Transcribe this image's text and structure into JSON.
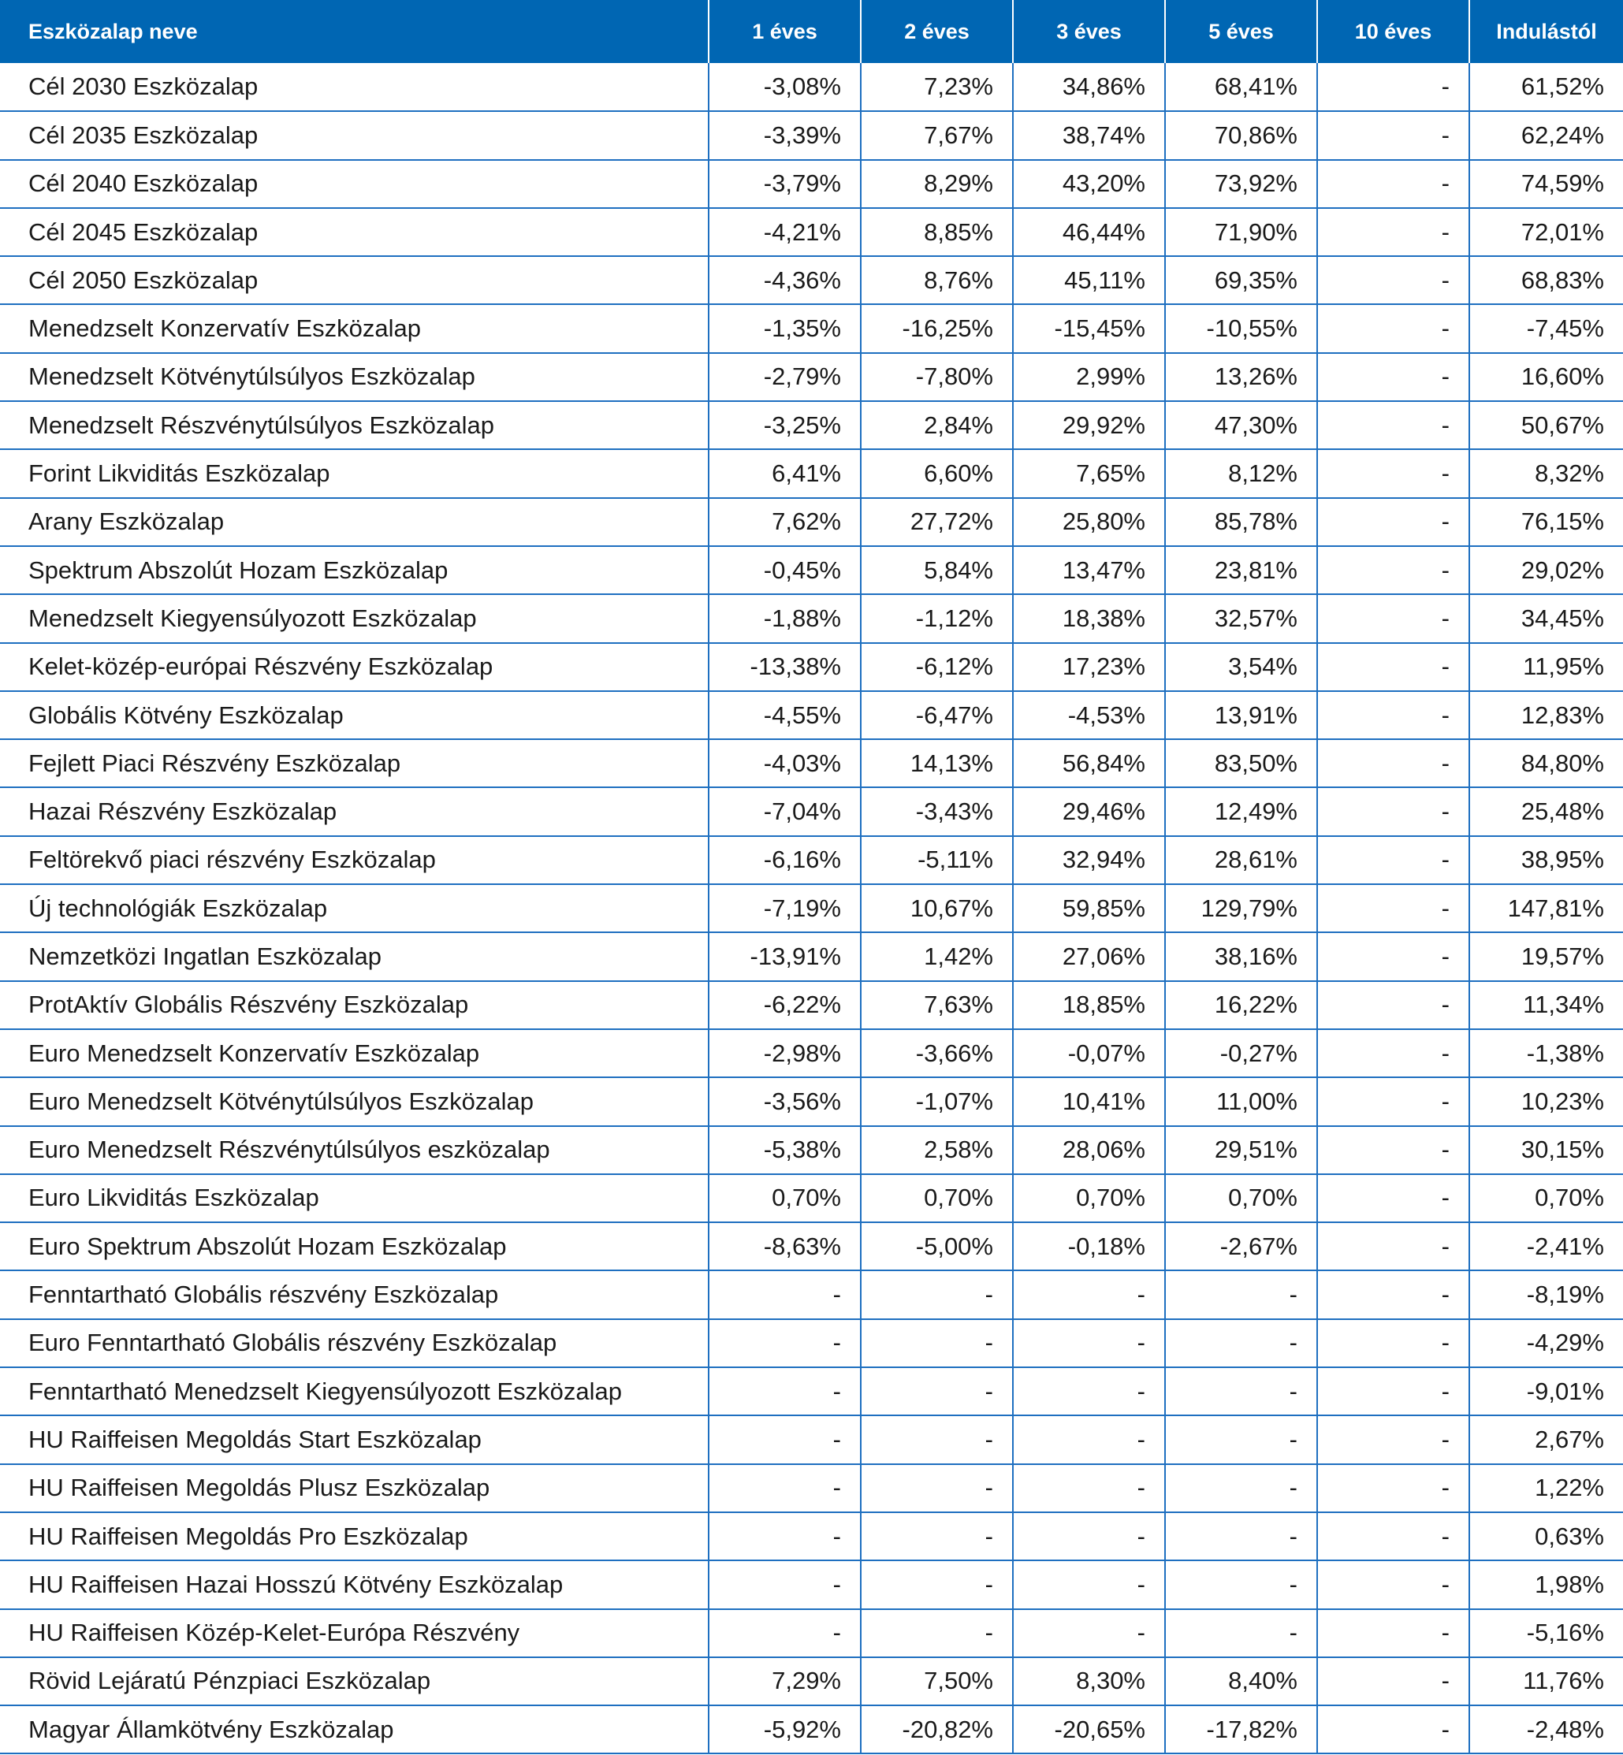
{
  "table": {
    "headers": [
      "Eszközalap neve",
      "1 éves",
      "2 éves",
      "3 éves",
      "5 éves",
      "10 éves",
      "Indulástól"
    ],
    "rows": [
      [
        "Cél 2030 Eszközalap",
        "-3,08%",
        "7,23%",
        "34,86%",
        "68,41%",
        "-",
        "61,52%"
      ],
      [
        "Cél 2035 Eszközalap",
        "-3,39%",
        "7,67%",
        "38,74%",
        "70,86%",
        "-",
        "62,24%"
      ],
      [
        "Cél 2040 Eszközalap",
        "-3,79%",
        "8,29%",
        "43,20%",
        "73,92%",
        "-",
        "74,59%"
      ],
      [
        "Cél 2045 Eszközalap",
        "-4,21%",
        "8,85%",
        "46,44%",
        "71,90%",
        "-",
        "72,01%"
      ],
      [
        "Cél 2050 Eszközalap",
        "-4,36%",
        "8,76%",
        "45,11%",
        "69,35%",
        "-",
        "68,83%"
      ],
      [
        "Menedzselt Konzervatív Eszközalap",
        "-1,35%",
        "-16,25%",
        "-15,45%",
        "-10,55%",
        "-",
        "-7,45%"
      ],
      [
        "Menedzselt Kötvénytúlsúlyos Eszközalap",
        "-2,79%",
        "-7,80%",
        "2,99%",
        "13,26%",
        "-",
        "16,60%"
      ],
      [
        "Menedzselt Részvénytúlsúlyos Eszközalap",
        "-3,25%",
        "2,84%",
        "29,92%",
        "47,30%",
        "-",
        "50,67%"
      ],
      [
        "Forint Likviditás Eszközalap",
        "6,41%",
        "6,60%",
        "7,65%",
        "8,12%",
        "-",
        "8,32%"
      ],
      [
        "Arany Eszközalap",
        "7,62%",
        "27,72%",
        "25,80%",
        "85,78%",
        "-",
        "76,15%"
      ],
      [
        "Spektrum Abszolút Hozam Eszközalap",
        "-0,45%",
        "5,84%",
        "13,47%",
        "23,81%",
        "-",
        "29,02%"
      ],
      [
        "Menedzselt Kiegyensúlyozott Eszközalap",
        "-1,88%",
        "-1,12%",
        "18,38%",
        "32,57%",
        "-",
        "34,45%"
      ],
      [
        "Kelet-közép-európai Részvény Eszközalap",
        "-13,38%",
        "-6,12%",
        "17,23%",
        "3,54%",
        "-",
        "11,95%"
      ],
      [
        "Globális Kötvény Eszközalap",
        "-4,55%",
        "-6,47%",
        "-4,53%",
        "13,91%",
        "-",
        "12,83%"
      ],
      [
        "Fejlett Piaci Részvény Eszközalap",
        "-4,03%",
        "14,13%",
        "56,84%",
        "83,50%",
        "-",
        "84,80%"
      ],
      [
        "Hazai Részvény Eszközalap",
        "-7,04%",
        "-3,43%",
        "29,46%",
        "12,49%",
        "-",
        "25,48%"
      ],
      [
        "Feltörekvő piaci részvény Eszközalap",
        "-6,16%",
        "-5,11%",
        "32,94%",
        "28,61%",
        "-",
        "38,95%"
      ],
      [
        "Új technológiák Eszközalap",
        "-7,19%",
        "10,67%",
        "59,85%",
        "129,79%",
        "-",
        "147,81%"
      ],
      [
        "Nemzetközi Ingatlan Eszközalap",
        "-13,91%",
        "1,42%",
        "27,06%",
        "38,16%",
        "-",
        "19,57%"
      ],
      [
        "ProtAktív Globális Részvény Eszközalap",
        "-6,22%",
        "7,63%",
        "18,85%",
        "16,22%",
        "-",
        "11,34%"
      ],
      [
        "Euro Menedzselt Konzervatív Eszközalap",
        "-2,98%",
        "-3,66%",
        "-0,07%",
        "-0,27%",
        "-",
        "-1,38%"
      ],
      [
        "Euro Menedzselt Kötvénytúlsúlyos Eszközalap",
        "-3,56%",
        "-1,07%",
        "10,41%",
        "11,00%",
        "-",
        "10,23%"
      ],
      [
        "Euro Menedzselt Részvénytúlsúlyos eszközalap",
        "-5,38%",
        "2,58%",
        "28,06%",
        "29,51%",
        "-",
        "30,15%"
      ],
      [
        "Euro Likviditás Eszközalap",
        "0,70%",
        "0,70%",
        "0,70%",
        "0,70%",
        "-",
        "0,70%"
      ],
      [
        "Euro Spektrum Abszolút Hozam Eszközalap",
        "-8,63%",
        "-5,00%",
        "-0,18%",
        "-2,67%",
        "-",
        "-2,41%"
      ],
      [
        "Fenntartható Globális részvény Eszközalap",
        "-",
        "-",
        "-",
        "-",
        "-",
        "-8,19%"
      ],
      [
        "Euro Fenntartható Globális részvény Eszközalap",
        "-",
        "-",
        "-",
        "-",
        "-",
        "-4,29%"
      ],
      [
        "Fenntartható Menedzselt Kiegyensúlyozott Eszközalap",
        "-",
        "-",
        "-",
        "-",
        "-",
        "-9,01%"
      ],
      [
        "HU Raiffeisen Megoldás Start Eszközalap",
        "-",
        "-",
        "-",
        "-",
        "-",
        "2,67%"
      ],
      [
        "HU Raiffeisen Megoldás Plusz Eszközalap",
        "-",
        "-",
        "-",
        "-",
        "-",
        "1,22%"
      ],
      [
        "HU Raiffeisen Megoldás Pro Eszközalap",
        "-",
        "-",
        "-",
        "-",
        "-",
        "0,63%"
      ],
      [
        "HU Raiffeisen Hazai Hosszú Kötvény Eszközalap",
        "-",
        "-",
        "-",
        "-",
        "-",
        "1,98%"
      ],
      [
        "HU Raiffeisen Közép-Kelet-Európa Részvény",
        "-",
        "-",
        "-",
        "-",
        "-",
        "-5,16%"
      ],
      [
        "Rövid Lejáratú Pénzpiaci Eszközalap",
        "7,29%",
        "7,50%",
        "8,30%",
        "8,40%",
        "-",
        "11,76%"
      ],
      [
        "Magyar Államkötvény Eszközalap",
        "-5,92%",
        "-20,82%",
        "-20,65%",
        "-17,82%",
        "-",
        "-2,48%"
      ]
    ]
  },
  "colors": {
    "header_bg": "#0066b3",
    "grid_line": "#1e6fc0"
  }
}
